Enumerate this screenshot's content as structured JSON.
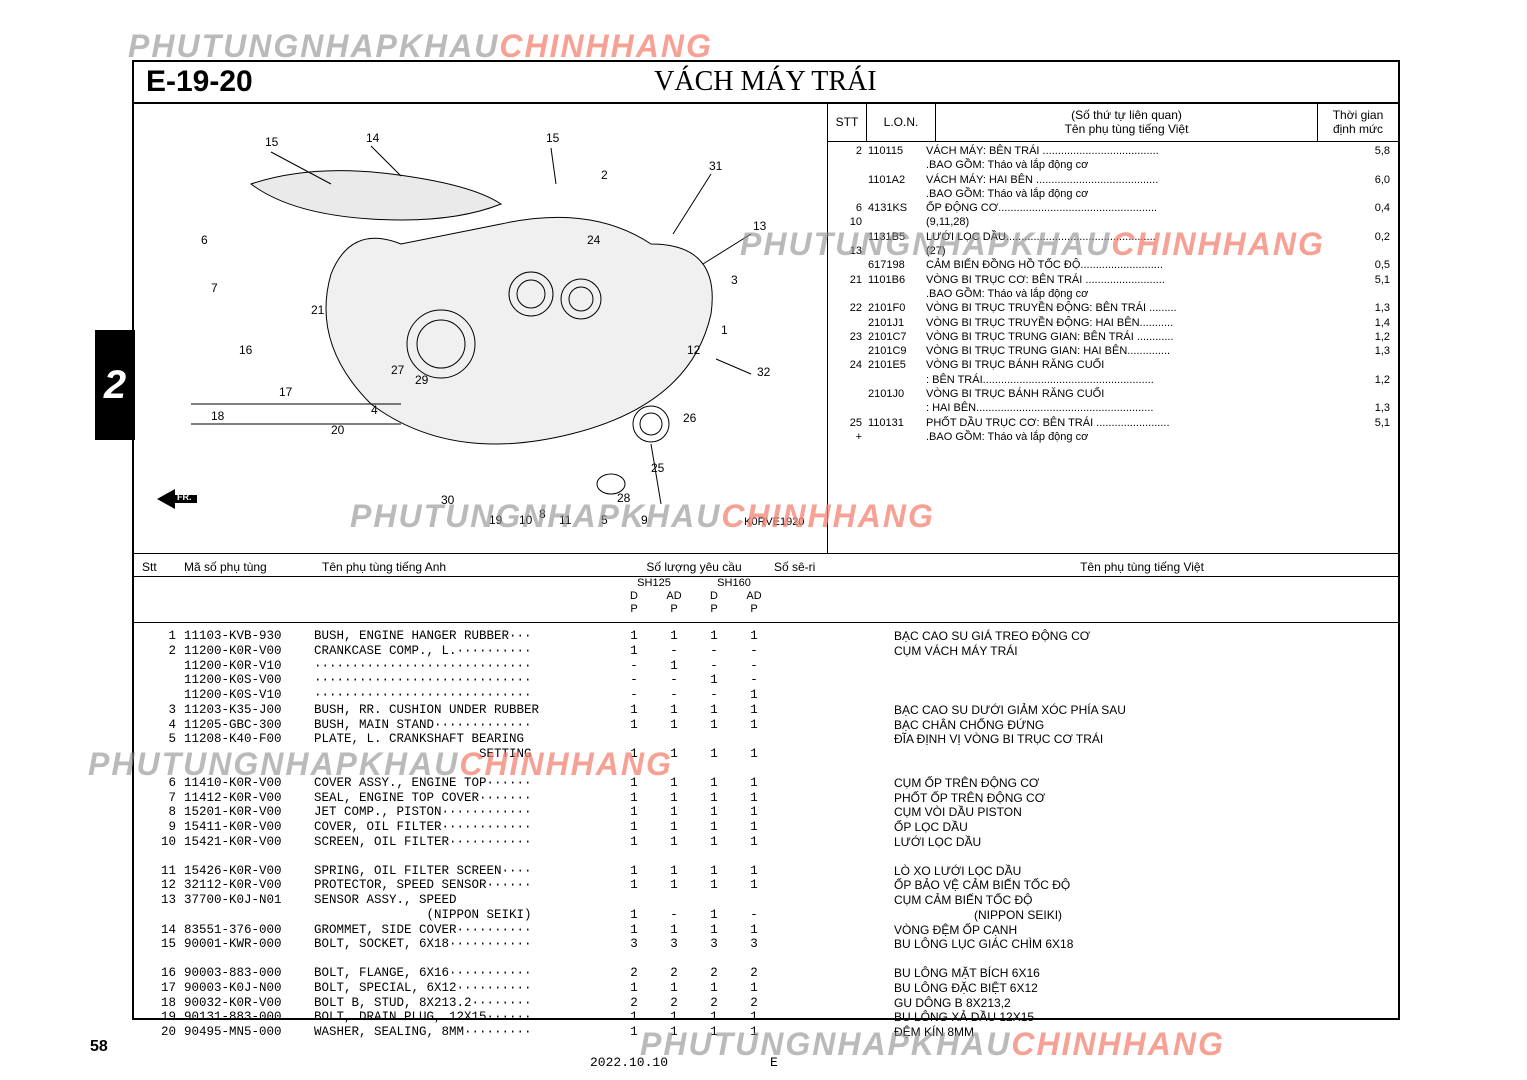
{
  "watermarks": {
    "text_gray": "PHUTUNGNHAPKHAU",
    "text_red": "CHINHHANG"
  },
  "section": {
    "code": "E-19-20",
    "title": "VÁCH MÁY TRÁI"
  },
  "page_tab": "2",
  "diagram": {
    "code": "K0RVE1920",
    "callouts": [
      "15",
      "14",
      "15",
      "31",
      "13",
      "6",
      "7",
      "21",
      "2",
      "24",
      "16",
      "3",
      "32",
      "27",
      "29",
      "17",
      "4",
      "1",
      "12",
      "20",
      "26",
      "18",
      "25",
      "30",
      "28",
      "8",
      "19",
      "10",
      "11",
      "5",
      "9"
    ]
  },
  "side_header": {
    "stt": "STT",
    "lon": "L.O.N.",
    "name_top": "(Số thứ tự liên quan)",
    "name_bottom": "Tên phụ tùng tiếng Việt",
    "time_top": "Thời gian",
    "time_bottom": "định mức"
  },
  "side_rows": [
    {
      "stt": "2",
      "lon": "110115",
      "name": "VÁCH MÁY: BÊN TRÁI ......................................",
      "time": "5,8"
    },
    {
      "stt": "",
      "lon": "",
      "name": ".BAO GỒM: Tháo và lắp động cơ",
      "time": ""
    },
    {
      "stt": "",
      "lon": "1101A2",
      "name": "VÁCH MÁY: HAI BÊN ........................................",
      "time": "6,0"
    },
    {
      "stt": "",
      "lon": "",
      "name": ".BAO GỒM: Tháo và lắp động cơ",
      "time": ""
    },
    {
      "stt": "6",
      "lon": "4131KS",
      "name": "ỐP ĐỘNG CƠ....................................................",
      "time": "0,4"
    },
    {
      "stt": "10",
      "lon": "",
      "name": "(9,11,28)",
      "time": ""
    },
    {
      "stt": "",
      "lon": "1131B5",
      "name": "LƯỚI LỌC DẦU.................................................",
      "time": "0,2"
    },
    {
      "stt": "13",
      "lon": "",
      "name": "(27)",
      "time": ""
    },
    {
      "stt": "",
      "lon": "617198",
      "name": "CẢM BIẾN ĐỒNG HỒ TỐC ĐỘ...........................",
      "time": "0,5"
    },
    {
      "stt": "21",
      "lon": "1101B6",
      "name": "VÒNG BI TRỤC CƠ: BÊN TRÁI ..........................",
      "time": "5,1"
    },
    {
      "stt": "",
      "lon": "",
      "name": ".BAO GỒM: Tháo và lắp động cơ",
      "time": ""
    },
    {
      "stt": "22",
      "lon": "2101F0",
      "name": "VÒNG BI TRỤC TRUYỀN ĐỘNG: BÊN TRÁI .........",
      "time": "1,3"
    },
    {
      "stt": "",
      "lon": "2101J1",
      "name": "VÒNG BI TRỤC TRUYỀN ĐỘNG: HAI BÊN...........",
      "time": "1,4"
    },
    {
      "stt": "23",
      "lon": "2101C7",
      "name": "VÒNG BI TRỤC TRUNG GIAN: BÊN TRÁI ............",
      "time": "1,2"
    },
    {
      "stt": "",
      "lon": "2101C9",
      "name": "VÒNG BI TRỤC TRUNG GIAN: HAI BÊN..............",
      "time": "1,3"
    },
    {
      "stt": "24",
      "lon": "2101E5",
      "name": "VÒNG BI TRỤC BÁNH RĂNG CUỐI",
      "time": ""
    },
    {
      "stt": "",
      "lon": "",
      "name": ": BÊN TRÁI........................................................",
      "time": "1,2"
    },
    {
      "stt": "",
      "lon": "2101J0",
      "name": "VÒNG BI TRỤC BÁNH RĂNG CUỐI",
      "time": ""
    },
    {
      "stt": "",
      "lon": "",
      "name": ": HAI BÊN..........................................................",
      "time": "1,3"
    },
    {
      "stt": "25",
      "lon": "110131",
      "name": "PHỐT DẦU TRỤC CƠ: BÊN TRÁI ........................",
      "time": "5,1"
    },
    {
      "stt": "+",
      "lon": "",
      "name": ".BAO GỒM: Tháo và lắp động cơ",
      "time": ""
    }
  ],
  "lower_header": {
    "stt": "Stt",
    "pn": "Mã số phụ tùng",
    "en": "Tên phụ tùng tiếng Anh",
    "qty_label": "Số lượng yêu cầu",
    "model_a": "SH125",
    "model_b": "SH160",
    "sub_d": "D",
    "sub_ad": "AD",
    "sub_p": "P",
    "ser": "Số sê-ri",
    "vn": "Tên phụ tùng tiếng Việt"
  },
  "part_groups": [
    [
      {
        "stt": "1",
        "pn": "11103-KVB-930",
        "en": "BUSH, ENGINE HANGER RUBBER···",
        "q": [
          "1",
          "1",
          "1",
          "1"
        ],
        "vn": "BẠC CAO SU GIÁ TREO ĐỘNG CƠ"
      },
      {
        "stt": "2",
        "pn": "11200-K0R-V00",
        "en": "CRANKCASE COMP., L.··········",
        "q": [
          "1",
          "-",
          "-",
          "-"
        ],
        "vn": "CỤM VÁCH MÁY TRÁI"
      },
      {
        "stt": "",
        "pn": "11200-K0R-V10",
        "en": "·····························",
        "q": [
          "-",
          "1",
          "-",
          "-"
        ],
        "vn": ""
      },
      {
        "stt": "",
        "pn": "11200-K0S-V00",
        "en": "·····························",
        "q": [
          "-",
          "-",
          "1",
          "-"
        ],
        "vn": ""
      },
      {
        "stt": "",
        "pn": "11200-K0S-V10",
        "en": "·····························",
        "q": [
          "-",
          "-",
          "-",
          "1"
        ],
        "vn": ""
      },
      {
        "stt": "3",
        "pn": "11203-K35-J00",
        "en": "BUSH, RR. CUSHION UNDER RUBBER",
        "q": [
          "1",
          "1",
          "1",
          "1"
        ],
        "vn": "BẠC CAO SU DƯỚI GIẢM XÓC PHÍA SAU"
      },
      {
        "stt": "4",
        "pn": "11205-GBC-300",
        "en": "BUSH, MAIN STAND·············",
        "q": [
          "1",
          "1",
          "1",
          "1"
        ],
        "vn": "BẠC CHÂN CHỐNG ĐỨNG"
      },
      {
        "stt": "5",
        "pn": "11208-K40-F00",
        "en": "PLATE, L. CRANKSHAFT BEARING",
        "q": [
          "",
          "",
          "",
          ""
        ],
        "vn": "ĐĨA ĐỊNH VỊ VÒNG BI TRỤC CƠ TRÁI"
      },
      {
        "stt": "",
        "pn": "",
        "en": "                      SETTING",
        "q": [
          "1",
          "1",
          "1",
          "1"
        ],
        "vn": ""
      }
    ],
    [
      {
        "stt": "6",
        "pn": "11410-K0R-V00",
        "en": "COVER ASSY., ENGINE TOP······",
        "q": [
          "1",
          "1",
          "1",
          "1"
        ],
        "vn": "CỤM ỐP TRÊN ĐỘNG CƠ"
      },
      {
        "stt": "7",
        "pn": "11412-K0R-V00",
        "en": "SEAL, ENGINE TOP COVER·······",
        "q": [
          "1",
          "1",
          "1",
          "1"
        ],
        "vn": "PHỐT ỐP TRÊN ĐỘNG CƠ"
      },
      {
        "stt": "8",
        "pn": "15201-K0R-V00",
        "en": "JET COMP., PISTON············",
        "q": [
          "1",
          "1",
          "1",
          "1"
        ],
        "vn": "CỤM VÒI DẦU PISTON"
      },
      {
        "stt": "9",
        "pn": "15411-K0R-V00",
        "en": "COVER, OIL FILTER············",
        "q": [
          "1",
          "1",
          "1",
          "1"
        ],
        "vn": "ỐP LỌC DẦU"
      },
      {
        "stt": "10",
        "pn": "15421-K0R-V00",
        "en": "SCREEN, OIL FILTER···········",
        "q": [
          "1",
          "1",
          "1",
          "1"
        ],
        "vn": "LƯỚI LỌC DẦU"
      }
    ],
    [
      {
        "stt": "11",
        "pn": "15426-K0R-V00",
        "en": "SPRING, OIL FILTER SCREEN····",
        "q": [
          "1",
          "1",
          "1",
          "1"
        ],
        "vn": "LÒ XO LƯỚI LỌC DẦU"
      },
      {
        "stt": "12",
        "pn": "32112-K0R-V00",
        "en": "PROTECTOR, SPEED SENSOR······",
        "q": [
          "1",
          "1",
          "1",
          "1"
        ],
        "vn": "ỐP BẢO VỆ CẢM BIẾN TỐC ĐỘ"
      },
      {
        "stt": "13",
        "pn": "37700-K0J-N01",
        "en": "SENSOR ASSY., SPEED",
        "q": [
          "",
          "",
          "",
          ""
        ],
        "vn": "CỤM CẢM BIẾN TỐC ĐỘ"
      },
      {
        "stt": "",
        "pn": "",
        "en": "               (NIPPON SEIKI)",
        "q": [
          "1",
          "-",
          "1",
          "-"
        ],
        "vn": "                        (NIPPON SEIKI)"
      },
      {
        "stt": "14",
        "pn": "83551-376-000",
        "en": "GROMMET, SIDE COVER··········",
        "q": [
          "1",
          "1",
          "1",
          "1"
        ],
        "vn": "VÒNG ĐỆM ỐP CẠNH"
      },
      {
        "stt": "15",
        "pn": "90001-KWR-000",
        "en": "BOLT, SOCKET, 6X18···········",
        "q": [
          "3",
          "3",
          "3",
          "3"
        ],
        "vn": "BU LÔNG LỤC GIÁC CHÌM 6X18"
      }
    ],
    [
      {
        "stt": "16",
        "pn": "90003-883-000",
        "en": "BOLT, FLANGE, 6X16···········",
        "q": [
          "2",
          "2",
          "2",
          "2"
        ],
        "vn": "BU LÔNG MẶT BÍCH 6X16"
      },
      {
        "stt": "17",
        "pn": "90003-K0J-N00",
        "en": "BOLT, SPECIAL, 6X12··········",
        "q": [
          "1",
          "1",
          "1",
          "1"
        ],
        "vn": "BU LÔNG ĐẶC BIỆT 6X12"
      },
      {
        "stt": "18",
        "pn": "90032-K0R-V00",
        "en": "BOLT B, STUD, 8X213.2········",
        "q": [
          "2",
          "2",
          "2",
          "2"
        ],
        "vn": "GU DÔNG B 8X213,2"
      },
      {
        "stt": "19",
        "pn": "90131-883-000",
        "en": "BOLT, DRAIN PLUG, 12X15······",
        "q": [
          "1",
          "1",
          "1",
          "1"
        ],
        "vn": "BU LÔNG XẢ DẦU 12X15"
      },
      {
        "stt": "20",
        "pn": "90495-MN5-000",
        "en": "WASHER, SEALING, 8MM·········",
        "q": [
          "1",
          "1",
          "1",
          "1"
        ],
        "vn": "ĐỆM KÍN 8MM"
      }
    ]
  ],
  "footer": {
    "page_num": "58",
    "date": "2022.10.10",
    "e": "E"
  }
}
